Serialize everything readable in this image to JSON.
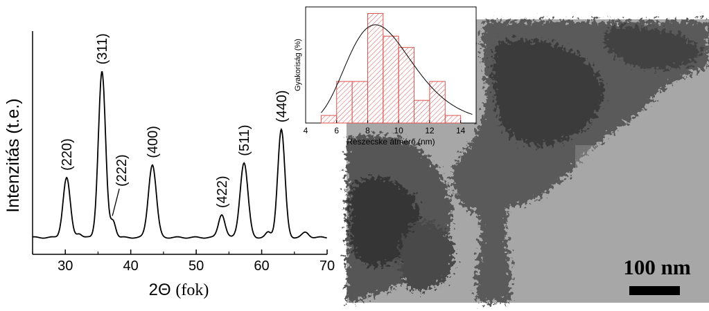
{
  "xrd": {
    "type": "line",
    "ylabel": "Intenzitás (t.e.)",
    "xlabel_symbol": "2Θ",
    "xlabel_unit": "(fok)",
    "xlim": [
      25,
      70
    ],
    "xticks": [
      30,
      40,
      50,
      60,
      70
    ],
    "ylim": [
      0,
      1
    ],
    "baseline": 0.06,
    "peaks": [
      {
        "label": "(220)",
        "x": 30.2,
        "y": 0.36,
        "width": 0.55
      },
      {
        "label": "(311)",
        "x": 35.6,
        "y": 1.0,
        "width": 0.55
      },
      {
        "label": "(222)",
        "x": 37.3,
        "y": 0.1,
        "width": 0.4
      },
      {
        "label": "(400)",
        "x": 43.3,
        "y": 0.44,
        "width": 0.6
      },
      {
        "label": "(422)",
        "x": 53.9,
        "y": 0.14,
        "width": 0.5
      },
      {
        "label": "(511)",
        "x": 57.3,
        "y": 0.45,
        "width": 0.6
      },
      {
        "label": "(440)",
        "x": 63.0,
        "y": 0.65,
        "width": 0.55
      }
    ],
    "minor_peaks": [
      {
        "x": 32.1,
        "y": 0.025,
        "width": 0.4
      },
      {
        "x": 61.0,
        "y": 0.03,
        "width": 0.4
      },
      {
        "x": 66.7,
        "y": 0.03,
        "width": 0.5
      }
    ]
  },
  "histogram": {
    "type": "bar",
    "xlabel": "Részecske átmérő (nm)",
    "ylabel": "Gyakoriság (%)",
    "xlim": [
      4,
      15
    ],
    "xticks": [
      4,
      6,
      8,
      10,
      12,
      14
    ],
    "ylim": [
      0,
      30
    ],
    "bin_width": 1,
    "bins": [
      {
        "start": 5,
        "value": 2.0
      },
      {
        "start": 6,
        "value": 11.0
      },
      {
        "start": 7,
        "value": 11.0
      },
      {
        "start": 8,
        "value": 29.0
      },
      {
        "start": 9,
        "value": 23.0
      },
      {
        "start": 10,
        "value": 20.0
      },
      {
        "start": 11,
        "value": 6.0
      },
      {
        "start": 12,
        "value": 11.0
      },
      {
        "start": 13,
        "value": 2.0
      }
    ],
    "fit": {
      "type": "lognormal",
      "mode": 8.5,
      "sigma": 0.25,
      "peak": 26.0
    },
    "bar_color": "#d9534f"
  },
  "tem": {
    "scale_label": "100 nm"
  }
}
